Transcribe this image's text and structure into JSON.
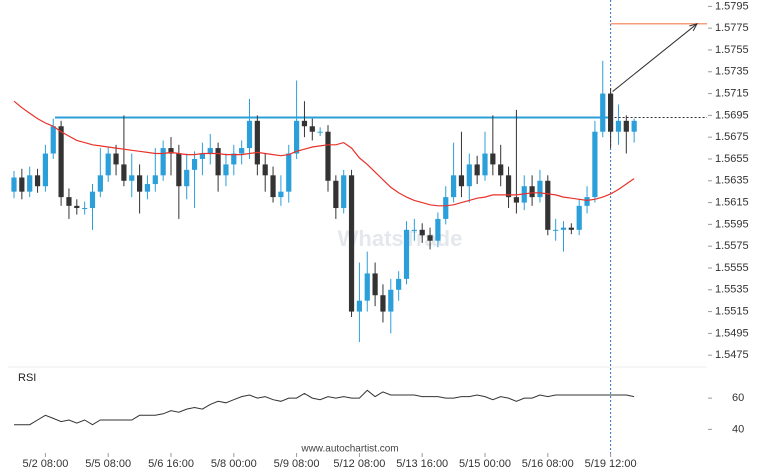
{
  "chart_data": {
    "type": "candlestick",
    "categories": [
      null,
      null,
      null,
      null,
      "5/2 08:00",
      null,
      null,
      null,
      null,
      null,
      null,
      null,
      "5/5 08:00",
      null,
      null,
      null,
      null,
      null,
      null,
      null,
      "5/6 16:00",
      null,
      null,
      null,
      null,
      null,
      null,
      null,
      "5/8 00:00",
      null,
      null,
      null,
      null,
      null,
      null,
      null,
      "5/9 08:00",
      null,
      null,
      null,
      null,
      null,
      null,
      null,
      "5/12 08:00",
      null,
      null,
      null,
      null,
      null,
      null,
      null,
      "5/13 16:00",
      null,
      null,
      null,
      null,
      null,
      null,
      null,
      "5/15 00:00",
      null,
      null,
      null,
      null,
      null,
      null,
      null,
      "5/16 08:00",
      null,
      null,
      null,
      null,
      null,
      null,
      null,
      "5/19 12:00",
      null,
      null,
      null
    ],
    "open": [
      1.5625,
      1.5638,
      1.5625,
      1.564,
      1.563,
      1.566,
      1.5685,
      1.562,
      1.5612,
      1.561,
      1.561,
      1.5625,
      1.564,
      1.566,
      1.565,
      1.5635,
      1.564,
      1.5625,
      1.5632,
      1.564,
      1.5665,
      1.566,
      1.563,
      1.5645,
      1.5655,
      1.566,
      1.5665,
      1.564,
      1.565,
      1.566,
      1.5665,
      1.569,
      1.565,
      1.564,
      1.562,
      1.5625,
      1.566,
      1.569,
      1.5685,
      1.568,
      1.568,
      1.5635,
      1.561,
      1.564,
      1.5515,
      1.5525,
      1.555,
      1.553,
      1.5515,
      1.5535,
      1.5545,
      1.559,
      1.559,
      1.5585,
      1.558,
      1.56,
      1.562,
      1.564,
      1.563,
      1.565,
      1.564,
      1.566,
      1.565,
      1.564,
      1.562,
      1.5615,
      1.563,
      1.562,
      1.5635,
      1.559,
      1.559,
      1.5592,
      1.559,
      1.5612,
      1.562,
      1.568,
      1.5715,
      1.568,
      1.569,
      1.568
    ],
    "high": [
      1.5644,
      1.5646,
      1.5648,
      1.5646,
      1.5668,
      1.5692,
      1.569,
      1.5628,
      1.5618,
      1.5616,
      1.5632,
      1.5665,
      1.5666,
      1.5668,
      1.5695,
      1.566,
      1.565,
      1.564,
      1.5665,
      1.5672,
      1.5675,
      1.5668,
      1.566,
      1.5662,
      1.567,
      1.5678,
      1.567,
      1.566,
      1.5668,
      1.5672,
      1.571,
      1.5695,
      1.566,
      1.5648,
      1.564,
      1.5668,
      1.5727,
      1.5708,
      1.5692,
      1.5684,
      1.5686,
      1.564,
      1.5645,
      1.5645,
      1.556,
      1.557,
      1.556,
      1.554,
      1.5545,
      1.5552,
      1.5598,
      1.56,
      1.5596,
      1.5592,
      1.5606,
      1.563,
      1.567,
      1.568,
      1.566,
      1.5658,
      1.568,
      1.5695,
      1.5668,
      1.5648,
      1.57,
      1.564,
      1.564,
      1.5645,
      1.564,
      1.56,
      1.5598,
      1.5596,
      1.5618,
      1.563,
      1.569,
      1.5745,
      1.572,
      1.5705,
      1.5695,
      1.5692
    ],
    "low": [
      1.5619,
      1.5618,
      1.562,
      1.5624,
      1.5625,
      1.5655,
      1.5612,
      1.56,
      1.5604,
      1.5604,
      1.559,
      1.562,
      1.5634,
      1.564,
      1.563,
      1.562,
      1.5605,
      1.5618,
      1.5625,
      1.5635,
      1.564,
      1.56,
      1.5618,
      1.561,
      1.564,
      1.565,
      1.5625,
      1.563,
      1.564,
      1.565,
      1.5655,
      1.564,
      1.5625,
      1.5615,
      1.5612,
      1.5615,
      1.5655,
      1.5675,
      1.5672,
      1.5676,
      1.5625,
      1.56,
      1.5605,
      1.551,
      1.5487,
      1.5515,
      1.552,
      1.5505,
      1.5495,
      1.5525,
      1.554,
      1.558,
      1.5578,
      1.5572,
      1.5574,
      1.5595,
      1.5615,
      1.562,
      1.5615,
      1.5632,
      1.5635,
      1.564,
      1.563,
      1.561,
      1.5605,
      1.5608,
      1.5612,
      1.5615,
      1.5585,
      1.558,
      1.557,
      1.5586,
      1.5585,
      1.5605,
      1.5615,
      1.5675,
      1.5665,
      1.5668,
      1.566,
      1.567
    ],
    "close": [
      1.5638,
      1.5625,
      1.564,
      1.563,
      1.566,
      1.5685,
      1.562,
      1.5612,
      1.561,
      1.561,
      1.5625,
      1.564,
      1.566,
      1.565,
      1.5635,
      1.564,
      1.5625,
      1.5632,
      1.564,
      1.5665,
      1.566,
      1.563,
      1.5645,
      1.5655,
      1.566,
      1.5665,
      1.564,
      1.565,
      1.566,
      1.5665,
      1.569,
      1.565,
      1.564,
      1.562,
      1.5625,
      1.566,
      1.569,
      1.5685,
      1.568,
      1.568,
      1.5635,
      1.561,
      1.564,
      1.5515,
      1.5525,
      1.555,
      1.553,
      1.5515,
      1.5535,
      1.5545,
      1.559,
      1.559,
      1.5585,
      1.558,
      1.56,
      1.562,
      1.564,
      1.563,
      1.565,
      1.564,
      1.566,
      1.565,
      1.564,
      1.562,
      1.5615,
      1.563,
      1.562,
      1.5635,
      1.559,
      1.559,
      1.5592,
      1.559,
      1.5612,
      1.562,
      1.568,
      1.5715,
      1.568,
      1.569,
      1.568,
      1.569
    ],
    "up_color": "#2b9fd9",
    "down_color": "#333333",
    "ma_color": "#e8322b",
    "ma_values": [
      1.5708,
      1.5702,
      1.5697,
      1.5692,
      1.5688,
      1.5685,
      1.568,
      1.5676,
      1.5672,
      1.567,
      1.5668,
      1.5667,
      1.5666,
      1.5665,
      1.5664,
      1.5663,
      1.5662,
      1.5661,
      1.566,
      1.566,
      1.5661,
      1.566,
      1.5659,
      1.5659,
      1.566,
      1.566,
      1.566,
      1.5659,
      1.5659,
      1.5659,
      1.566,
      1.5661,
      1.566,
      1.5659,
      1.5658,
      1.5659,
      1.5662,
      1.5664,
      1.5666,
      1.5667,
      1.5668,
      1.5668,
      1.567,
      1.5665,
      1.5656,
      1.565,
      1.5643,
      1.5636,
      1.5629,
      1.5624,
      1.562,
      1.5617,
      1.5615,
      1.5613,
      1.5612,
      1.5612,
      1.5613,
      1.5615,
      1.5617,
      1.5619,
      1.562,
      1.5622,
      1.5622,
      1.5622,
      1.5622,
      1.5623,
      1.5624,
      1.5624,
      1.5623,
      1.5622,
      1.562,
      1.5619,
      1.5618,
      1.5617,
      1.5618,
      1.562,
      1.5623,
      1.5627,
      1.5632,
      1.5637
    ],
    "level": 1.5693,
    "level_color": "#2b9fd9",
    "target": 1.5779,
    "target_color": "#f07f4f",
    "ylim": [
      1.5466,
      1.5799
    ],
    "yticks": [
      1.5795,
      1.5775,
      1.5755,
      1.5735,
      1.5715,
      1.5695,
      1.5675,
      1.5655,
      1.5635,
      1.5615,
      1.5595,
      1.5575,
      1.5555,
      1.5535,
      1.5515,
      1.5495,
      1.5475
    ],
    "watermark": "WhatsTrade",
    "source": "www.autochartist.com",
    "rsi": {
      "type": "line",
      "label": "RSI",
      "color": "#333333",
      "values": [
        43,
        43,
        43,
        46,
        49,
        47,
        45,
        46,
        44,
        46,
        43,
        46,
        46,
        46,
        46,
        46,
        49,
        49,
        49,
        50,
        52,
        51,
        53,
        54,
        53,
        56,
        58,
        57,
        59,
        61,
        62,
        60,
        61,
        59,
        58,
        60,
        60,
        63,
        60,
        59,
        61,
        60,
        61,
        60,
        60,
        65,
        61,
        64,
        62,
        62,
        62,
        62,
        61,
        61,
        61,
        60,
        60,
        61,
        61,
        62,
        61,
        59,
        61,
        60,
        58,
        60,
        60,
        62,
        61,
        62,
        62,
        62,
        62,
        62,
        62,
        62,
        62,
        62,
        62,
        61
      ],
      "ylim": [
        30,
        78
      ],
      "yticks": [
        60,
        40
      ]
    }
  }
}
